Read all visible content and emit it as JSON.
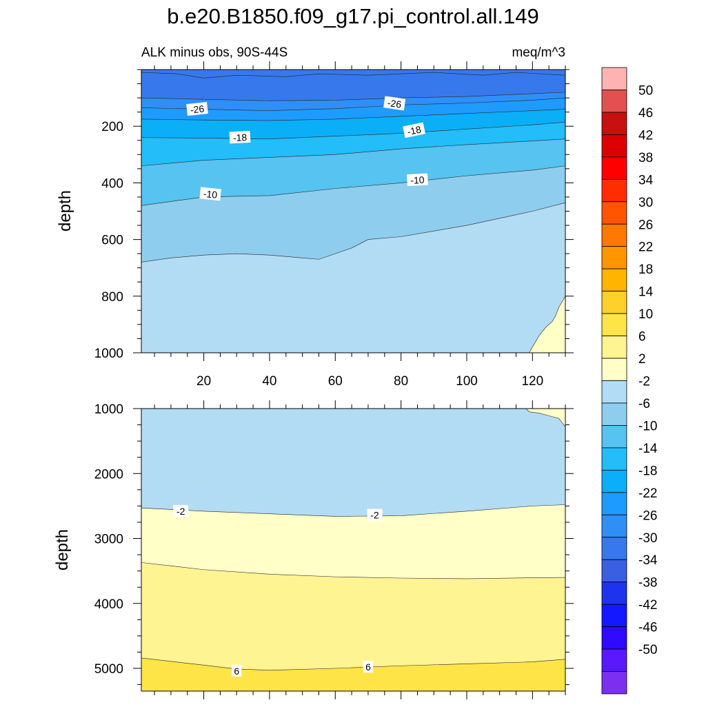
{
  "chart_data": {
    "type": "contour",
    "title": "b.e20.B1850.f09_g17.pi_control.all.149",
    "subtitle_left": "ALK minus obs, 90S-44S",
    "subtitle_right": "meq/m^3",
    "ylabel": "depth",
    "xrange": [
      1,
      130
    ],
    "xticks": [
      20,
      40,
      60,
      80,
      100,
      120
    ],
    "top_panel": {
      "ylim": [
        0,
        1000
      ],
      "yticks": [
        200,
        400,
        600,
        800,
        1000
      ],
      "bands": [
        {
          "lo": -38,
          "color": "#3a5fe0",
          "upper": [
            [
              1,
              0
            ],
            [
              130,
              0
            ]
          ],
          "lower": [
            [
              1,
              10
            ],
            [
              12,
              15
            ],
            [
              20,
              30
            ],
            [
              30,
              20
            ],
            [
              45,
              25
            ],
            [
              55,
              15
            ],
            [
              70,
              20
            ],
            [
              90,
              10
            ],
            [
              105,
              20
            ],
            [
              115,
              10
            ],
            [
              130,
              20
            ]
          ]
        },
        {
          "lo": -34,
          "color": "#3779ec",
          "upper": [
            [
              1,
              0
            ],
            [
              130,
              0
            ]
          ],
          "lower": [
            [
              1,
              100
            ],
            [
              20,
              105
            ],
            [
              40,
              110
            ],
            [
              60,
              108
            ],
            [
              80,
              100
            ],
            [
              100,
              95
            ],
            [
              120,
              85
            ],
            [
              130,
              80
            ]
          ]
        },
        {
          "lo": -30,
          "color": "#2f8ff7",
          "upper": [
            [
              1,
              100
            ],
            [
              20,
              105
            ],
            [
              40,
              110
            ],
            [
              60,
              108
            ],
            [
              80,
              100
            ],
            [
              100,
              95
            ],
            [
              120,
              85
            ],
            [
              130,
              80
            ]
          ],
          "lower": [
            [
              1,
              135
            ],
            [
              20,
              140
            ],
            [
              40,
              145
            ],
            [
              60,
              138
            ],
            [
              80,
              125
            ],
            [
              100,
              118
            ],
            [
              120,
              108
            ],
            [
              130,
              100
            ]
          ]
        },
        {
          "lo": -26,
          "color": "#1e9bff",
          "upper": [
            [
              1,
              135
            ],
            [
              20,
              140
            ],
            [
              40,
              145
            ],
            [
              60,
              138
            ],
            [
              80,
              125
            ],
            [
              100,
              118
            ],
            [
              120,
              108
            ],
            [
              130,
              100
            ]
          ],
          "lower": [
            [
              1,
              175
            ],
            [
              20,
              178
            ],
            [
              40,
              180
            ],
            [
              60,
              175
            ],
            [
              80,
              165
            ],
            [
              100,
              155
            ],
            [
              120,
              145
            ],
            [
              130,
              140
            ]
          ]
        },
        {
          "lo": -22,
          "color": "#0aaff8",
          "upper": [
            [
              1,
              175
            ],
            [
              20,
              178
            ],
            [
              40,
              180
            ],
            [
              60,
              175
            ],
            [
              80,
              165
            ],
            [
              100,
              155
            ],
            [
              120,
              145
            ],
            [
              130,
              140
            ]
          ],
          "lower": [
            [
              1,
              240
            ],
            [
              20,
              242
            ],
            [
              40,
              245
            ],
            [
              60,
              235
            ],
            [
              80,
              225
            ],
            [
              100,
              210
            ],
            [
              120,
              195
            ],
            [
              130,
              185
            ]
          ]
        },
        {
          "lo": -18,
          "color": "#23bdf9",
          "upper": [
            [
              1,
              240
            ],
            [
              20,
              242
            ],
            [
              40,
              245
            ],
            [
              60,
              235
            ],
            [
              80,
              225
            ],
            [
              100,
              210
            ],
            [
              120,
              195
            ],
            [
              130,
              185
            ]
          ],
          "lower": [
            [
              1,
              340
            ],
            [
              20,
              320
            ],
            [
              40,
              310
            ],
            [
              60,
              300
            ],
            [
              80,
              280
            ],
            [
              100,
              265
            ],
            [
              120,
              252
            ],
            [
              130,
              245
            ]
          ]
        },
        {
          "lo": -14,
          "color": "#56c3f1",
          "upper": [
            [
              1,
              340
            ],
            [
              20,
              320
            ],
            [
              40,
              310
            ],
            [
              60,
              300
            ],
            [
              80,
              280
            ],
            [
              100,
              265
            ],
            [
              120,
              252
            ],
            [
              130,
              245
            ]
          ],
          "lower": [
            [
              1,
              480
            ],
            [
              20,
              450
            ],
            [
              40,
              445
            ],
            [
              60,
              420
            ],
            [
              80,
              400
            ],
            [
              100,
              375
            ],
            [
              120,
              355
            ],
            [
              130,
              340
            ]
          ]
        },
        {
          "lo": -10,
          "color": "#8fcdee",
          "upper": [
            [
              1,
              480
            ],
            [
              20,
              450
            ],
            [
              40,
              445
            ],
            [
              60,
              420
            ],
            [
              80,
              400
            ],
            [
              100,
              375
            ],
            [
              120,
              355
            ],
            [
              130,
              340
            ]
          ],
          "lower": [
            [
              1,
              680
            ],
            [
              10,
              665
            ],
            [
              20,
              655
            ],
            [
              30,
              650
            ],
            [
              40,
              655
            ],
            [
              50,
              665
            ],
            [
              55,
              670
            ],
            [
              65,
              630
            ],
            [
              70,
              600
            ],
            [
              80,
              590
            ],
            [
              90,
              570
            ],
            [
              100,
              550
            ],
            [
              110,
              525
            ],
            [
              120,
              500
            ],
            [
              130,
              470
            ]
          ]
        },
        {
          "lo": -6,
          "color": "#b2dcf3",
          "upper": [
            [
              1,
              680
            ],
            [
              10,
              665
            ],
            [
              20,
              655
            ],
            [
              30,
              650
            ],
            [
              40,
              655
            ],
            [
              50,
              665
            ],
            [
              55,
              670
            ],
            [
              65,
              630
            ],
            [
              70,
              600
            ],
            [
              80,
              590
            ],
            [
              90,
              570
            ],
            [
              100,
              550
            ],
            [
              110,
              525
            ],
            [
              120,
              500
            ],
            [
              130,
              470
            ]
          ],
          "lower": [
            [
              1,
              1000
            ],
            [
              130,
              1000
            ]
          ]
        },
        {
          "lo": -2,
          "color": "#ffffc8",
          "region": [
            [
              119,
              1000
            ],
            [
              122,
              940
            ],
            [
              124,
              910
            ],
            [
              126,
              890
            ],
            [
              127,
              870
            ],
            [
              128,
              840
            ],
            [
              129,
              820
            ],
            [
              130,
              800
            ],
            [
              130,
              1000
            ]
          ]
        }
      ],
      "labels": [
        {
          "x": 18,
          "y": 140,
          "text": "-26",
          "rot": -6
        },
        {
          "x": 78,
          "y": 120,
          "text": "-26",
          "rot": 8
        },
        {
          "x": 31,
          "y": 240,
          "text": "-18",
          "rot": -3
        },
        {
          "x": 84,
          "y": 215,
          "text": "-18",
          "rot": -12
        },
        {
          "x": 22,
          "y": 440,
          "text": "-10",
          "rot": 6
        },
        {
          "x": 85,
          "y": 390,
          "text": "-10",
          "rot": -3
        }
      ]
    },
    "bottom_panel": {
      "ylim": [
        1000,
        5350
      ],
      "yticks": [
        1000,
        2000,
        3000,
        4000,
        5000
      ],
      "bands": [
        {
          "lo": -6,
          "color": "#b2dcf3",
          "upper": [
            [
              1,
              1000
            ],
            [
              130,
              1000
            ]
          ],
          "lower": [
            [
              1,
              2530
            ],
            [
              20,
              2580
            ],
            [
              40,
              2620
            ],
            [
              60,
              2660
            ],
            [
              80,
              2650
            ],
            [
              100,
              2580
            ],
            [
              120,
              2500
            ],
            [
              130,
              2480
            ]
          ]
        },
        {
          "lo": -2,
          "color": "#ffffc8",
          "upper": [
            [
              1,
              2530
            ],
            [
              20,
              2580
            ],
            [
              40,
              2620
            ],
            [
              60,
              2660
            ],
            [
              80,
              2650
            ],
            [
              100,
              2580
            ],
            [
              120,
              2500
            ],
            [
              130,
              2480
            ]
          ],
          "lower": [
            [
              1,
              3370
            ],
            [
              20,
              3480
            ],
            [
              40,
              3550
            ],
            [
              60,
              3590
            ],
            [
              80,
              3610
            ],
            [
              100,
              3620
            ],
            [
              120,
              3605
            ],
            [
              130,
              3600
            ]
          ]
        },
        {
          "lo": 2,
          "color": "#fff392",
          "upper": [
            [
              1,
              3370
            ],
            [
              20,
              3480
            ],
            [
              40,
              3550
            ],
            [
              60,
              3590
            ],
            [
              80,
              3610
            ],
            [
              100,
              3620
            ],
            [
              120,
              3605
            ],
            [
              130,
              3600
            ]
          ],
          "lower": [
            [
              1,
              4840
            ],
            [
              20,
              4950
            ],
            [
              30,
              5010
            ],
            [
              40,
              5030
            ],
            [
              60,
              5000
            ],
            [
              80,
              4960
            ],
            [
              100,
              4930
            ],
            [
              120,
              4900
            ],
            [
              130,
              4860
            ]
          ]
        },
        {
          "lo": 6,
          "color": "#ffe448",
          "upper": [
            [
              1,
              4840
            ],
            [
              20,
              4950
            ],
            [
              30,
              5010
            ],
            [
              40,
              5030
            ],
            [
              60,
              5000
            ],
            [
              80,
              4960
            ],
            [
              100,
              4930
            ],
            [
              120,
              4900
            ],
            [
              130,
              4860
            ]
          ],
          "lower": [
            [
              1,
              5350
            ],
            [
              130,
              5350
            ]
          ]
        },
        {
          "lo": -2,
          "color": "#ffffc8",
          "region": [
            [
              118,
              1000
            ],
            [
              119,
              1050
            ],
            [
              122,
              1070
            ],
            [
              125,
              1110
            ],
            [
              128,
              1150
            ],
            [
              130,
              1280
            ],
            [
              130,
              1000
            ]
          ]
        }
      ],
      "labels": [
        {
          "x": 13,
          "y": 2580,
          "text": "-2",
          "rot": 0
        },
        {
          "x": 72,
          "y": 2640,
          "text": "-2",
          "rot": 0
        },
        {
          "x": 30,
          "y": 5040,
          "text": "6",
          "rot": 0
        },
        {
          "x": 70,
          "y": 4980,
          "text": "6",
          "rot": 0
        }
      ]
    },
    "colorbar": {
      "colors": [
        "#7b2ff0",
        "#5a18ff",
        "#3009ff",
        "#1418ff",
        "#1e33ec",
        "#3a5fe0",
        "#3779ec",
        "#2f8ff7",
        "#1e9bff",
        "#0aaff8",
        "#23bdf9",
        "#56c3f1",
        "#8fcdee",
        "#b2dcf3",
        "#ffffc8",
        "#fff392",
        "#ffe448",
        "#ffcf2a",
        "#ffb400",
        "#ff9600",
        "#ff7800",
        "#ff5400",
        "#ff2e00",
        "#ff0000",
        "#dc0000",
        "#c81010",
        "#e45050",
        "#ffb2b2"
      ],
      "labels": [
        "-50",
        "-46",
        "-42",
        "-38",
        "-34",
        "-30",
        "-26",
        "-22",
        "-18",
        "-14",
        "-10",
        "-6",
        "-2",
        "2",
        "6",
        "10",
        "14",
        "18",
        "22",
        "26",
        "30",
        "34",
        "38",
        "42",
        "46",
        "50"
      ]
    }
  }
}
